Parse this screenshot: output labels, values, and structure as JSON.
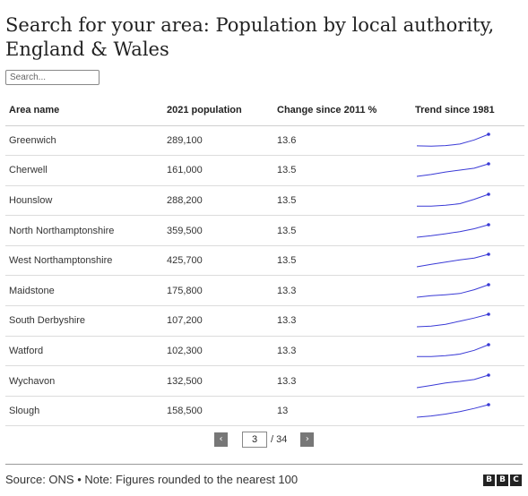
{
  "title": "Search for your area: Population by local authority, England & Wales",
  "search": {
    "placeholder": "Search..."
  },
  "table": {
    "headers": [
      "Area name",
      "2021 population",
      "Change since 2011 %",
      "Trend since 1981"
    ],
    "rows": [
      {
        "area": "Greenwich",
        "population": "289,100",
        "change": "13.6",
        "trend": [
          0.08,
          0.05,
          0.1,
          0.22,
          0.55,
          1.0
        ]
      },
      {
        "area": "Cherwell",
        "population": "161,000",
        "change": "13.5",
        "trend": [
          0.0,
          0.15,
          0.35,
          0.5,
          0.65,
          1.0
        ]
      },
      {
        "area": "Hounslow",
        "population": "288,200",
        "change": "13.5",
        "trend": [
          0.05,
          0.05,
          0.12,
          0.25,
          0.6,
          1.0
        ]
      },
      {
        "area": "North Northamptonshire",
        "population": "359,500",
        "change": "13.5",
        "trend": [
          0.0,
          0.12,
          0.28,
          0.45,
          0.68,
          1.0
        ]
      },
      {
        "area": "West Northamptonshire",
        "population": "425,700",
        "change": "13.5",
        "trend": [
          0.0,
          0.2,
          0.38,
          0.55,
          0.7,
          1.0
        ]
      },
      {
        "area": "Maidstone",
        "population": "175,800",
        "change": "13.3",
        "trend": [
          0.0,
          0.12,
          0.2,
          0.3,
          0.6,
          1.0
        ]
      },
      {
        "area": "South Derbyshire",
        "population": "107,200",
        "change": "13.3",
        "trend": [
          0.0,
          0.05,
          0.2,
          0.45,
          0.7,
          1.0
        ]
      },
      {
        "area": "Watford",
        "population": "102,300",
        "change": "13.3",
        "trend": [
          0.05,
          0.05,
          0.12,
          0.25,
          0.55,
          1.0
        ]
      },
      {
        "area": "Wychavon",
        "population": "132,500",
        "change": "13.3",
        "trend": [
          0.0,
          0.18,
          0.38,
          0.5,
          0.65,
          1.0
        ]
      },
      {
        "area": "Slough",
        "population": "158,500",
        "change": "13",
        "trend": [
          0.0,
          0.1,
          0.25,
          0.45,
          0.7,
          1.0
        ]
      }
    ]
  },
  "pagination": {
    "prev": "‹",
    "next": "›",
    "page": "3",
    "total": "/ 34"
  },
  "footer": {
    "source": "Source: ONS • Note: Figures rounded to the nearest 100",
    "logo_letters": [
      "B",
      "B",
      "C"
    ]
  },
  "colors": {
    "trend_line": "#3a3ad6",
    "button_bg": "#777777"
  }
}
